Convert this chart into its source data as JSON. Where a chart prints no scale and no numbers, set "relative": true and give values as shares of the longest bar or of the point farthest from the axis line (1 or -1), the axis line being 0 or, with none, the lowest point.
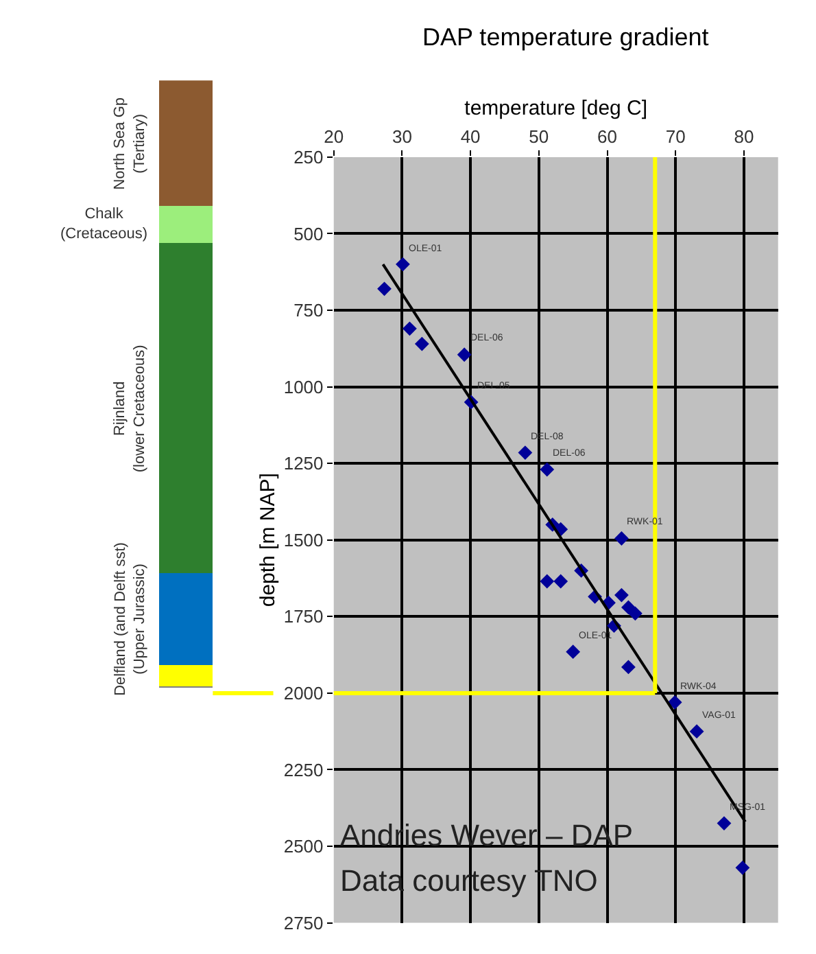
{
  "chart_data": [
    {
      "type": "bar",
      "stacked": true,
      "relative": true,
      "categories": [
        null
      ],
      "series": [
        {
          "color": "#ffff00",
          "values": [
            0.035
          ]
        },
        {
          "name": "Delfland (and Delft sst)\n(Upper Jurassic)",
          "color": "#0070c0",
          "values": [
            0.152
          ]
        },
        {
          "name": "Rijnland\n(lower Cretaceous)",
          "color": "#2e7f2e",
          "values": [
            0.545
          ]
        },
        {
          "name": "Chalk\n(Cretaceous)",
          "color": "#9cee7c",
          "values": [
            0.061
          ]
        },
        {
          "name": "North Sea Gp\n(Tertiary)",
          "color": "#8c5a30",
          "values": [
            0.207
          ]
        }
      ]
    },
    {
      "type": "scatter",
      "title": "DAP temperature gradient",
      "xlabel": "temperature [deg C]",
      "ylabel": "depth [m NAP]",
      "xlim": [
        20,
        85
      ],
      "xticks": [
        20,
        30,
        40,
        50,
        60,
        70,
        80
      ],
      "ylim": [
        2750,
        250
      ],
      "yticks": [
        250,
        500,
        750,
        1000,
        1250,
        1500,
        1750,
        2000,
        2250,
        2500,
        2750
      ],
      "grid": true,
      "marker": "diamond",
      "series": [
        {
          "type": "scatter",
          "color": "#000099",
          "x": [
            30.1,
            27.4,
            31.1,
            32.9,
            39.1,
            40.1,
            48.0,
            51.2,
            52.0,
            53.2,
            62.1,
            51.2,
            53.2,
            56.2,
            58.2,
            60.2,
            62.1,
            63.1,
            64.1,
            61.0,
            55.0,
            63.1,
            69.9,
            73.1,
            77.1,
            79.8
          ],
          "values": [
            600,
            680,
            810,
            860,
            895,
            1050,
            1215,
            1270,
            1450,
            1465,
            1495,
            1635,
            1635,
            1600,
            1685,
            1705,
            1680,
            1720,
            1740,
            1780,
            1865,
            1915,
            2030,
            2125,
            2425,
            2570
          ]
        },
        {
          "type": "line",
          "color": "#000000",
          "marker": "none",
          "x": [
            27.2,
            80.2
          ],
          "values": [
            600,
            2420
          ]
        }
      ],
      "ref_lines": [
        {
          "axis": "x",
          "value": 67,
          "color": "#ffff00"
        },
        {
          "axis": "y",
          "value": 2000,
          "color": "#ffff00"
        }
      ],
      "annotations": [
        {
          "text": "OLE-01",
          "x": 30.1,
          "y": 600
        },
        {
          "text": "DEL-06",
          "x": 39.1,
          "y": 895
        },
        {
          "text": "DEL-05",
          "x": 40.1,
          "y": 1050
        },
        {
          "text": "DEL-08",
          "x": 48.0,
          "y": 1215
        },
        {
          "text": "DEL-06",
          "x": 51.2,
          "y": 1270
        },
        {
          "text": "RWK-01",
          "x": 62.1,
          "y": 1495
        },
        {
          "text": "OLE-01",
          "x": 55.0,
          "y": 1865
        },
        {
          "text": "RWK-04",
          "x": 69.9,
          "y": 2030
        },
        {
          "text": "VAG-01",
          "x": 73.1,
          "y": 2125
        },
        {
          "text": "MSG-01",
          "x": 77.1,
          "y": 2425
        },
        "Andries Wever – DAP",
        "Data courtesy TNO"
      ]
    }
  ]
}
